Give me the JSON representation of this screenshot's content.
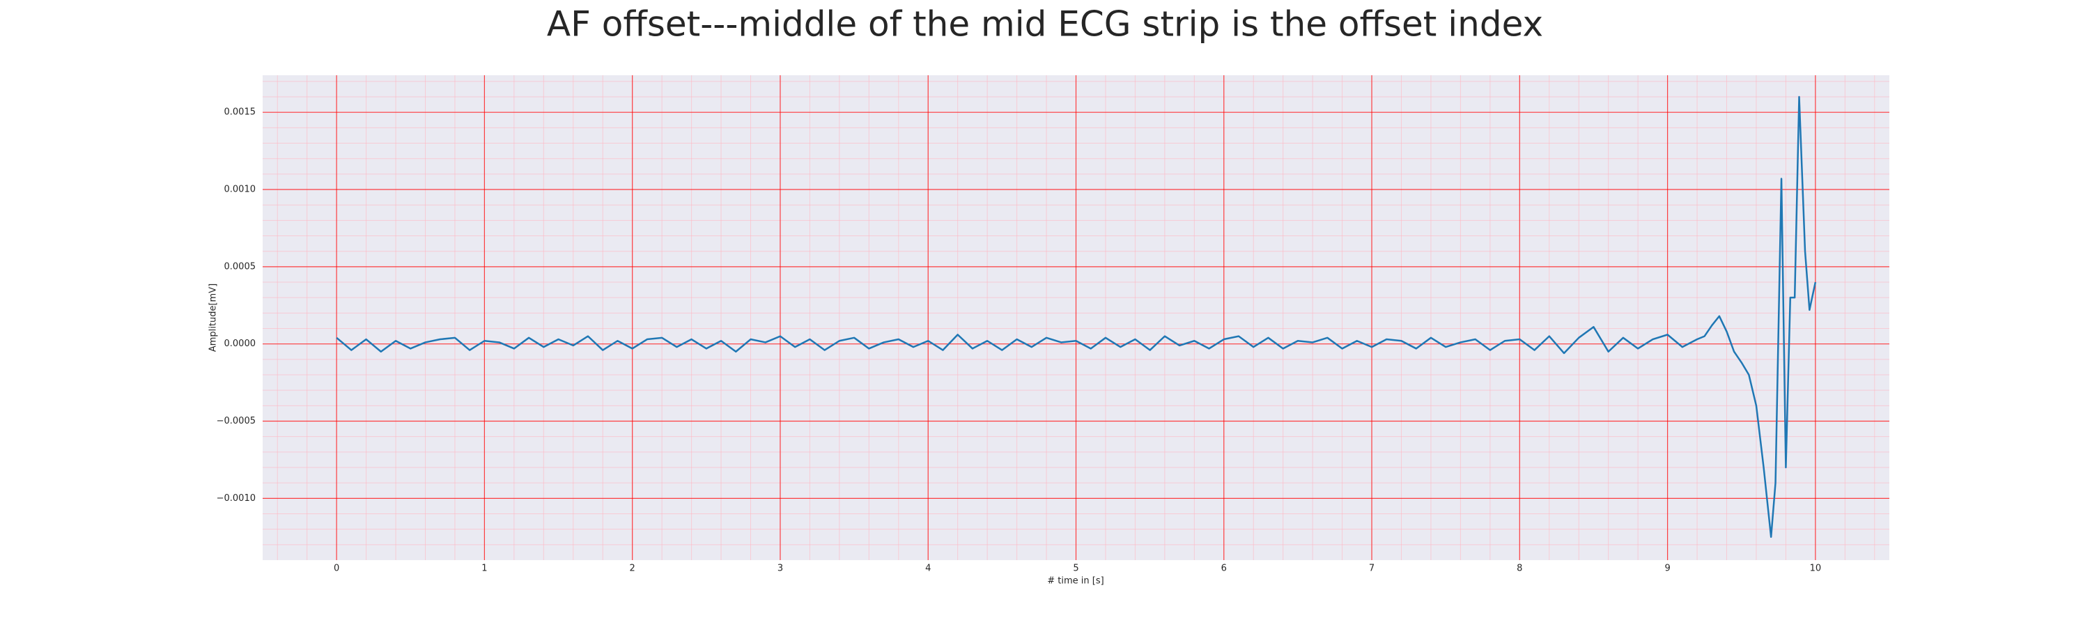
{
  "chart_data": {
    "type": "line",
    "title": "AF offset---middle of the mid ECG strip is the offset index",
    "x_label": "# time in [s]",
    "y_label": "Amplitude[mV]",
    "color": "#1f77b4",
    "grid": true,
    "grid_color": "#ff0000",
    "minor_grid_color": "#ffb6c1",
    "xlim": [
      -0.5,
      10.5
    ],
    "ylim": [
      -0.0014,
      0.00174
    ],
    "xticks": [
      0,
      1,
      2,
      3,
      4,
      5,
      6,
      7,
      8,
      9,
      10
    ],
    "yticks": [
      {
        "value": -0.001,
        "label": "−0.0010"
      },
      {
        "value": -0.0005,
        "label": "−0.0005"
      },
      {
        "value": 0,
        "label": "0.0000"
      },
      {
        "value": 0.0005,
        "label": "0.0005"
      },
      {
        "value": 0.001,
        "label": "0.0010"
      },
      {
        "value": 0.0015,
        "label": "0.0015"
      }
    ],
    "xminorticks": [
      -0.4,
      -0.2,
      0,
      0.2,
      0.4,
      0.6,
      0.8,
      1,
      1.2,
      1.4,
      1.6,
      1.8,
      2,
      2.2,
      2.4,
      2.6,
      2.8,
      3,
      3.2,
      3.4,
      3.6,
      3.8,
      4,
      4.2,
      4.4,
      4.6,
      4.8,
      5,
      5.2,
      5.4,
      5.6,
      5.8,
      6,
      6.2,
      6.4,
      6.6,
      6.8,
      7,
      7.2,
      7.4,
      7.6,
      7.8,
      8,
      8.2,
      8.4,
      8.6,
      8.8,
      9,
      9.2,
      9.4,
      9.6,
      9.8,
      10,
      10.2,
      10.4
    ],
    "yminorticks": [
      -0.0013,
      -0.0012,
      -0.0011,
      -0.001,
      -0.0009,
      -0.0008,
      -0.0007,
      -0.0006,
      -0.0005,
      -0.0004,
      -0.0003,
      -0.0002,
      -0.0001,
      0,
      0.0001,
      0.0002,
      0.0003,
      0.0004,
      0.0005,
      0.0006,
      0.0007,
      0.0008,
      0.0009,
      0.001,
      0.0011,
      0.0012,
      0.0013,
      0.0014,
      0.0015,
      0.0016,
      0.0017
    ],
    "x": [
      0,
      0.1,
      0.2,
      0.3,
      0.4,
      0.5,
      0.6,
      0.7,
      0.8,
      0.9,
      1,
      1.1,
      1.2,
      1.3,
      1.4,
      1.5,
      1.6,
      1.7,
      1.8,
      1.9,
      2,
      2.1,
      2.2,
      2.3,
      2.4,
      2.5,
      2.6,
      2.7,
      2.8,
      2.9,
      3,
      3.1,
      3.2,
      3.3,
      3.4,
      3.5,
      3.6,
      3.7,
      3.8,
      3.9,
      4,
      4.1,
      4.2,
      4.3,
      4.4,
      4.5,
      4.6,
      4.7,
      4.8,
      4.9,
      5,
      5.1,
      5.2,
      5.3,
      5.4,
      5.5,
      5.6,
      5.7,
      5.8,
      5.9,
      6,
      6.1,
      6.2,
      6.3,
      6.4,
      6.5,
      6.6,
      6.7,
      6.8,
      6.9,
      7,
      7.1,
      7.2,
      7.3,
      7.4,
      7.5,
      7.6,
      7.7,
      7.8,
      7.9,
      8,
      8.1,
      8.2,
      8.3,
      8.4,
      8.5,
      8.6,
      8.7,
      8.8,
      8.9,
      9,
      9.1,
      9.2,
      9.25,
      9.3,
      9.35,
      9.4,
      9.45,
      9.5,
      9.55,
      9.6,
      9.65,
      9.7,
      9.73,
      9.77,
      9.8,
      9.83,
      9.86,
      9.89,
      9.93,
      9.96,
      10
    ],
    "values": [
      4e-05,
      -4e-05,
      3e-05,
      -5e-05,
      2e-05,
      -3e-05,
      1e-05,
      3e-05,
      4e-05,
      -4e-05,
      2e-05,
      1e-05,
      -3e-05,
      4e-05,
      -2e-05,
      3e-05,
      -1e-05,
      5e-05,
      -4e-05,
      2e-05,
      -3e-05,
      3e-05,
      4e-05,
      -2e-05,
      3e-05,
      -3e-05,
      2e-05,
      -5e-05,
      3e-05,
      1e-05,
      5e-05,
      -2e-05,
      3e-05,
      -4e-05,
      2e-05,
      4e-05,
      -3e-05,
      1e-05,
      3e-05,
      -2e-05,
      2e-05,
      -4e-05,
      6e-05,
      -3e-05,
      2e-05,
      -4e-05,
      3e-05,
      -2e-05,
      4e-05,
      1e-05,
      2e-05,
      -3e-05,
      4e-05,
      -2e-05,
      3e-05,
      -4e-05,
      5e-05,
      -1e-05,
      2e-05,
      -3e-05,
      3e-05,
      5e-05,
      -2e-05,
      4e-05,
      -3e-05,
      2e-05,
      1e-05,
      4e-05,
      -3e-05,
      2e-05,
      -2e-05,
      3e-05,
      2e-05,
      -3e-05,
      4e-05,
      -2e-05,
      1e-05,
      3e-05,
      -4e-05,
      2e-05,
      3e-05,
      -4e-05,
      5e-05,
      -6e-05,
      4e-05,
      0.00011,
      -5e-05,
      4e-05,
      -3e-05,
      3e-05,
      6e-05,
      -2e-05,
      3e-05,
      5e-05,
      0.00012,
      0.00018,
      8e-05,
      -5e-05,
      -0.00012,
      -0.0002,
      -0.0004,
      -0.0008,
      -0.00125,
      -0.0009,
      0.00107,
      -0.0008,
      0.0003,
      0.0003,
      0.0016,
      0.0006,
      0.00022,
      0.0004
    ]
  }
}
